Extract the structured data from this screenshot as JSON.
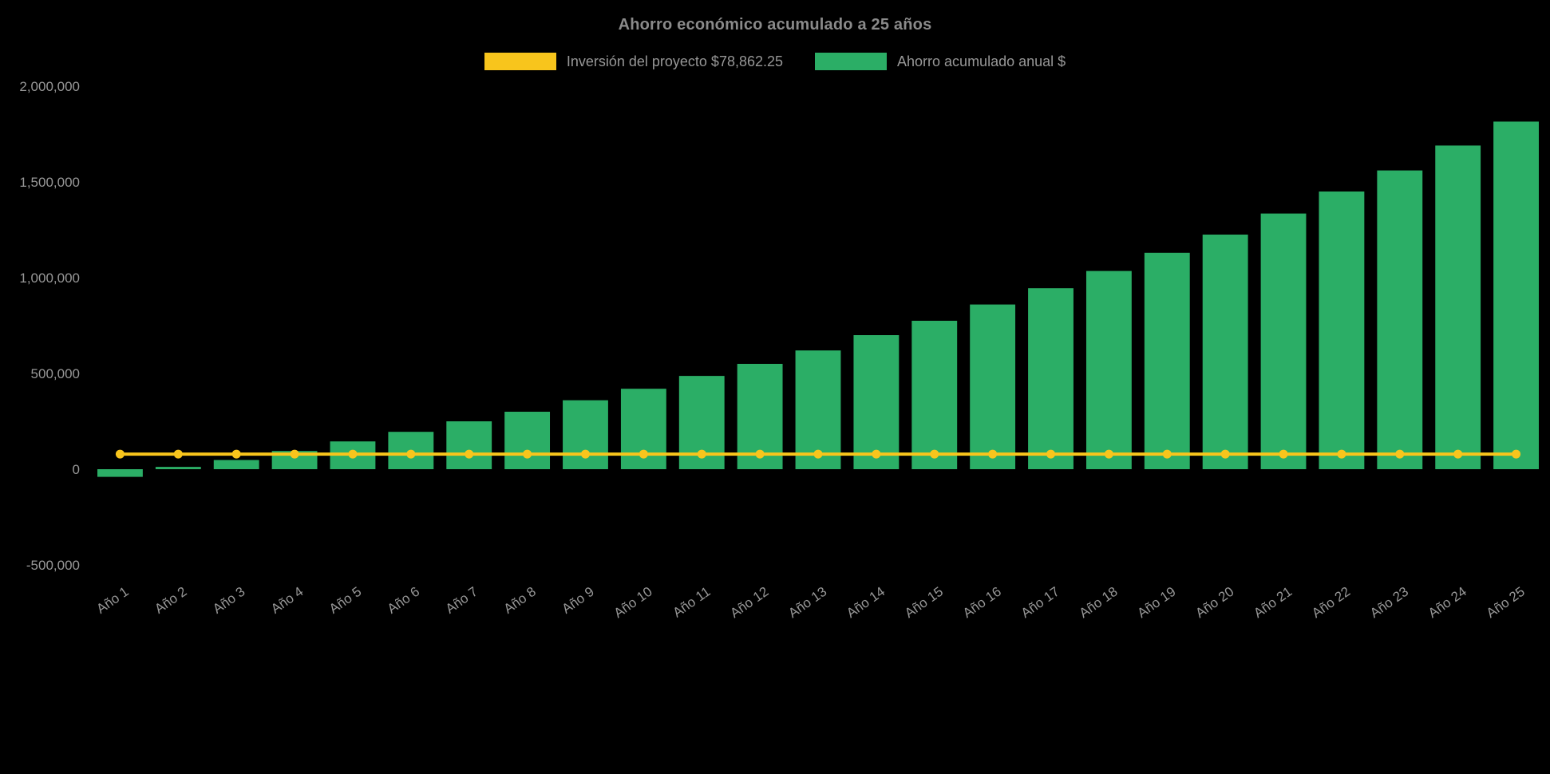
{
  "page": {
    "background": "#000000",
    "text_color": "#979797",
    "title_color": "#8a8a8a"
  },
  "chart_data": {
    "type": "bar",
    "title": "Ahorro económico acumulado a 25 años",
    "categories": [
      "Año 1",
      "Año 2",
      "Año 3",
      "Año 4",
      "Año 5",
      "Año 6",
      "Año 7",
      "Año 8",
      "Año 9",
      "Año 10",
      "Año 11",
      "Año 12",
      "Año 13",
      "Año 14",
      "Año 15",
      "Año 16",
      "Año 17",
      "Año 18",
      "Año 19",
      "Año 20",
      "Año 21",
      "Año 22",
      "Año 23",
      "Año 24",
      "Año 25"
    ],
    "series": [
      {
        "name": "Inversión del proyecto $78,862.25",
        "type": "line",
        "color": "#f8c51c",
        "values": [
          78862.25,
          78862.25,
          78862.25,
          78862.25,
          78862.25,
          78862.25,
          78862.25,
          78862.25,
          78862.25,
          78862.25,
          78862.25,
          78862.25,
          78862.25,
          78862.25,
          78862.25,
          78862.25,
          78862.25,
          78862.25,
          78862.25,
          78862.25,
          78862.25,
          78862.25,
          78862.25,
          78862.25,
          78862.25
        ]
      },
      {
        "name": "Ahorro acumulado anual $",
        "type": "bar",
        "color": "#2bae66",
        "values": [
          -40000,
          12000,
          48000,
          95000,
          145000,
          195000,
          250000,
          300000,
          360000,
          420000,
          487000,
          550000,
          620000,
          700000,
          775000,
          860000,
          945000,
          1035000,
          1130000,
          1225000,
          1335000,
          1450000,
          1560000,
          1690000,
          1815000
        ]
      }
    ],
    "ylim": [
      -500000,
      2000000
    ],
    "y_ticks": [
      2000000,
      1500000,
      1000000,
      500000,
      0,
      -500000
    ],
    "y_tick_labels": [
      "2,000,000",
      "1,500,000",
      "1,000,000",
      "500,000",
      "0",
      "-500,000"
    ],
    "grid": false,
    "legend_position": "top",
    "xlabel": "",
    "ylabel": ""
  }
}
